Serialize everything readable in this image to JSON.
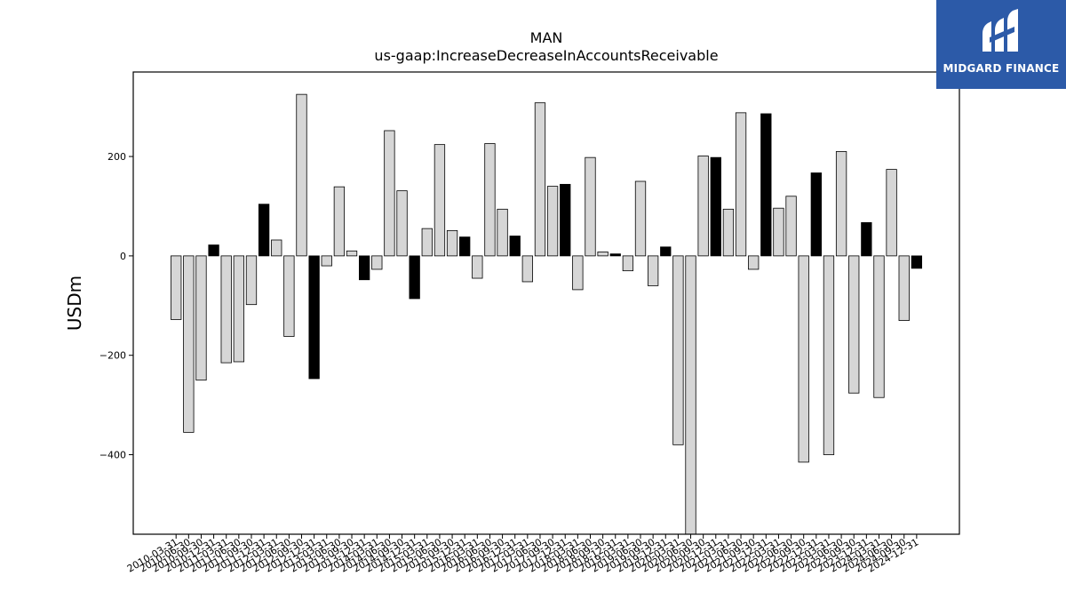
{
  "chart_data": {
    "type": "bar",
    "title": "MAN",
    "subtitle": "us-gaap:IncreaseDecreaseInAccountsReceivable",
    "ylabel": "USDm",
    "xlabel": "",
    "ylim": [
      -560,
      370
    ],
    "yticks": [
      -400,
      -200,
      0,
      200
    ],
    "grid": false,
    "categories": [
      "2010-03-31",
      "2010-06-30",
      "2010-09-30",
      "2010-12-31",
      "2011-03-31",
      "2011-06-30",
      "2011-09-30",
      "2011-12-31",
      "2012-03-31",
      "2012-06-30",
      "2012-09-30",
      "2012-12-31",
      "2013-03-31",
      "2013-06-30",
      "2013-09-30",
      "2013-12-31",
      "2014-03-31",
      "2014-06-30",
      "2014-09-30",
      "2014-12-31",
      "2015-03-31",
      "2015-06-30",
      "2015-09-30",
      "2015-12-31",
      "2016-03-31",
      "2016-06-30",
      "2016-09-30",
      "2016-12-31",
      "2017-03-31",
      "2017-06-30",
      "2017-09-30",
      "2017-12-31",
      "2018-03-31",
      "2018-06-30",
      "2018-09-30",
      "2018-12-31",
      "2019-03-31",
      "2019-06-30",
      "2019-09-30",
      "2019-12-31",
      "2020-03-31",
      "2020-06-30",
      "2020-09-30",
      "2020-12-31",
      "2021-03-31",
      "2021-06-30",
      "2021-09-30",
      "2021-12-31",
      "2022-03-31",
      "2022-06-30",
      "2022-09-30",
      "2022-12-31",
      "2023-03-31",
      "2023-06-30",
      "2023-09-30",
      "2023-12-31",
      "2024-03-31",
      "2024-06-30",
      "2024-09-30",
      "2024-12-31"
    ],
    "values": [
      -128,
      -355,
      -250,
      22,
      -215,
      -213,
      -98,
      104,
      32,
      -162,
      325,
      -247,
      -20,
      139,
      10,
      -48,
      -27,
      252,
      131,
      -86,
      55,
      224,
      51,
      38,
      -45,
      226,
      94,
      40,
      -52,
      308,
      140,
      144,
      -68,
      198,
      8,
      4,
      -30,
      150,
      -60,
      18,
      -380,
      -560,
      201,
      198,
      94,
      288,
      -27,
      286,
      96,
      120,
      -415,
      167,
      -400,
      210,
      -276,
      67,
      -285,
      174,
      -130,
      -25
    ],
    "year_end_highlight": true,
    "colors": {
      "bar_fill": "#d6d6d6",
      "bar_highlight": "#000000",
      "bar_edge": "#000000"
    }
  },
  "logo": {
    "text": "MIDGARD FINANCE",
    "color": "#2c5aa8"
  }
}
